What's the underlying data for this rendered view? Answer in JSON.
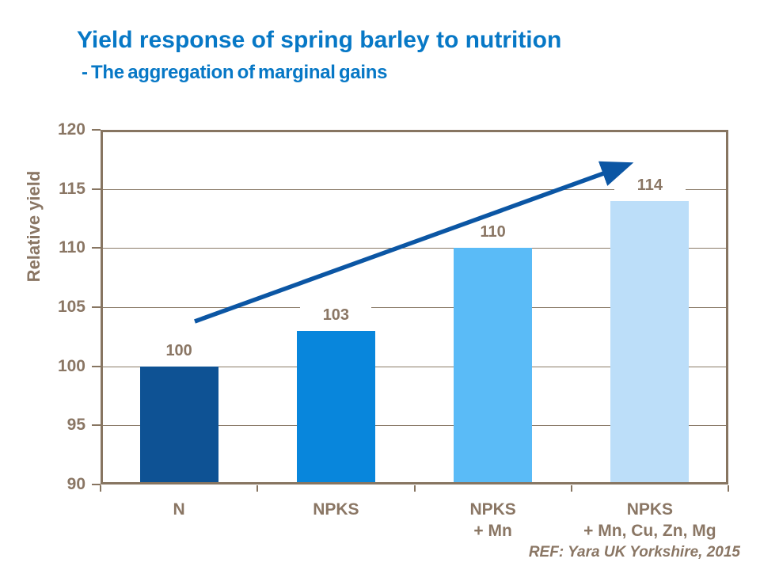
{
  "title": "Yield response of spring barley to nutrition",
  "subtitle": "- The aggregation of marginal gains",
  "reference": "REF: Yara UK Yorkshire, 2015",
  "colors": {
    "title_blue": "#0778C6",
    "chart_text_brown": "#8A7664",
    "frame_brown": "#877561",
    "gridline_brown": "#8A7A68",
    "arrow_blue": "#0B56A4",
    "bar_colors": [
      "#0E5294",
      "#0886DC",
      "#5ABBF7",
      "#BCDEF9"
    ]
  },
  "chart_data": {
    "type": "bar",
    "title": "Yield response of spring barley to nutrition - The aggregation of marginal gains",
    "categories": [
      "N",
      "NPKS",
      "NPKS + Mn",
      "NPKS + Mn, Cu, Zn, Mg"
    ],
    "category_lines": [
      [
        "N"
      ],
      [
        "NPKS"
      ],
      [
        "NPKS",
        "+ Mn"
      ],
      [
        "NPKS",
        "+ Mn, Cu, Zn, Mg"
      ]
    ],
    "values": [
      100,
      103,
      110,
      114
    ],
    "value_labels": [
      "100",
      "103",
      "110",
      "114"
    ],
    "bar_colors": [
      "#0E5294",
      "#0886DC",
      "#5ABBF7",
      "#BCDEF9"
    ],
    "xlabel": "",
    "ylabel": "Relative yield",
    "ylim": [
      90,
      120
    ],
    "yticks": [
      90,
      95,
      100,
      105,
      110,
      115,
      120
    ],
    "grid": true,
    "legend": false,
    "annotations": [
      "upward diagonal trend arrow from above bar 1 toward upper right"
    ]
  }
}
